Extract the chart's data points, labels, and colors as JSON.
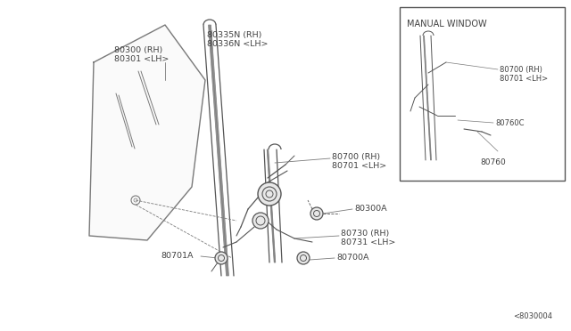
{
  "bg_color": "#ffffff",
  "line_color": "#7a7a7a",
  "dark_line": "#555555",
  "text_color": "#404040",
  "diagram_id": "<8030004",
  "labels": {
    "glass": "80300 (RH)\n80301 <LH>",
    "run": "80335N (RH)\n80336N <LH>",
    "reg_main": "80700 (RH)\n80701 <LH>",
    "bolt": "80300A",
    "reg_bot": "80730 (RH)\n80731 <LH>",
    "washer_l": "80701A",
    "washer_r": "80700A",
    "inset_title": "MANUAL WINDOW",
    "inset_l1": "80700 (RH)\n80701 <LH>",
    "inset_l2": "80760C",
    "inset_l3": "80760"
  }
}
